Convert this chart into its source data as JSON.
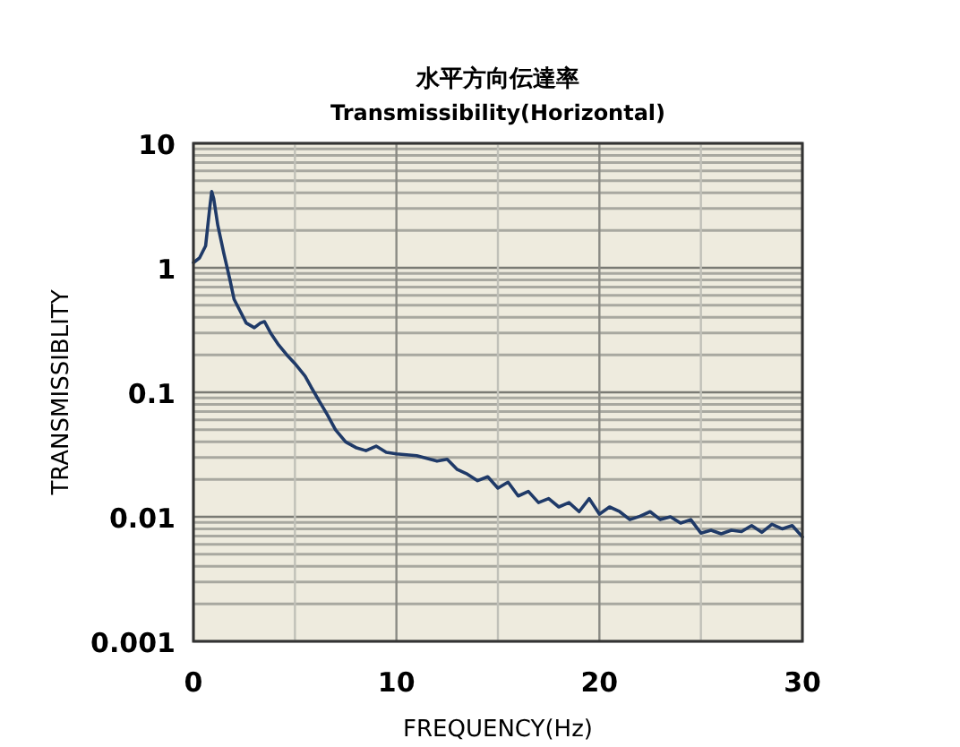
{
  "chart_data": {
    "type": "line",
    "title": "水平方向伝達率",
    "subtitle": "Transmissibility(Horizontal)",
    "xlabel": "FREQUENCY(Hz)",
    "ylabel": "TRANSMISSIBLITY",
    "x": [
      0,
      0.3,
      0.6,
      0.8,
      0.9,
      1.0,
      1.2,
      1.5,
      1.8,
      2.0,
      2.3,
      2.6,
      3.0,
      3.3,
      3.5,
      3.8,
      4.2,
      4.6,
      5.0,
      5.5,
      5.8,
      6.2,
      6.6,
      7.0,
      7.5,
      8.0,
      8.5,
      9.0,
      9.5,
      10,
      11,
      12,
      12.5,
      13,
      13.5,
      14,
      14.5,
      15,
      15.5,
      16,
      16.5,
      17,
      17.5,
      18,
      18.5,
      19,
      19.5,
      20,
      20.5,
      21,
      21.5,
      22,
      22.5,
      23,
      23.5,
      24,
      24.5,
      25,
      25.5,
      26,
      26.5,
      27,
      27.5,
      28,
      28.5,
      29,
      29.5,
      30
    ],
    "series": [
      {
        "color": "#1f3a68",
        "values": [
          1.1,
          1.2,
          1.5,
          3.0,
          4.1,
          3.6,
          2.2,
          1.3,
          0.8,
          0.56,
          0.45,
          0.36,
          0.33,
          0.36,
          0.37,
          0.3,
          0.24,
          0.2,
          0.17,
          0.135,
          0.11,
          0.085,
          0.066,
          0.05,
          0.04,
          0.036,
          0.034,
          0.037,
          0.033,
          0.032,
          0.031,
          0.028,
          0.029,
          0.024,
          0.022,
          0.0195,
          0.021,
          0.017,
          0.019,
          0.0147,
          0.016,
          0.013,
          0.014,
          0.012,
          0.013,
          0.011,
          0.014,
          0.0105,
          0.012,
          0.011,
          0.0095,
          0.0101,
          0.011,
          0.0095,
          0.01,
          0.0089,
          0.0095,
          0.0074,
          0.0078,
          0.0073,
          0.0078,
          0.0076,
          0.0085,
          0.0075,
          0.0087,
          0.008,
          0.0085,
          0.0069
        ]
      }
    ],
    "xlim": [
      0,
      30
    ],
    "ylim": [
      0.001,
      10
    ],
    "xticks": [
      0,
      10,
      20,
      30
    ],
    "yticks": [
      0.001,
      0.01,
      0.1,
      1,
      10
    ],
    "log": "y",
    "grid": true
  }
}
